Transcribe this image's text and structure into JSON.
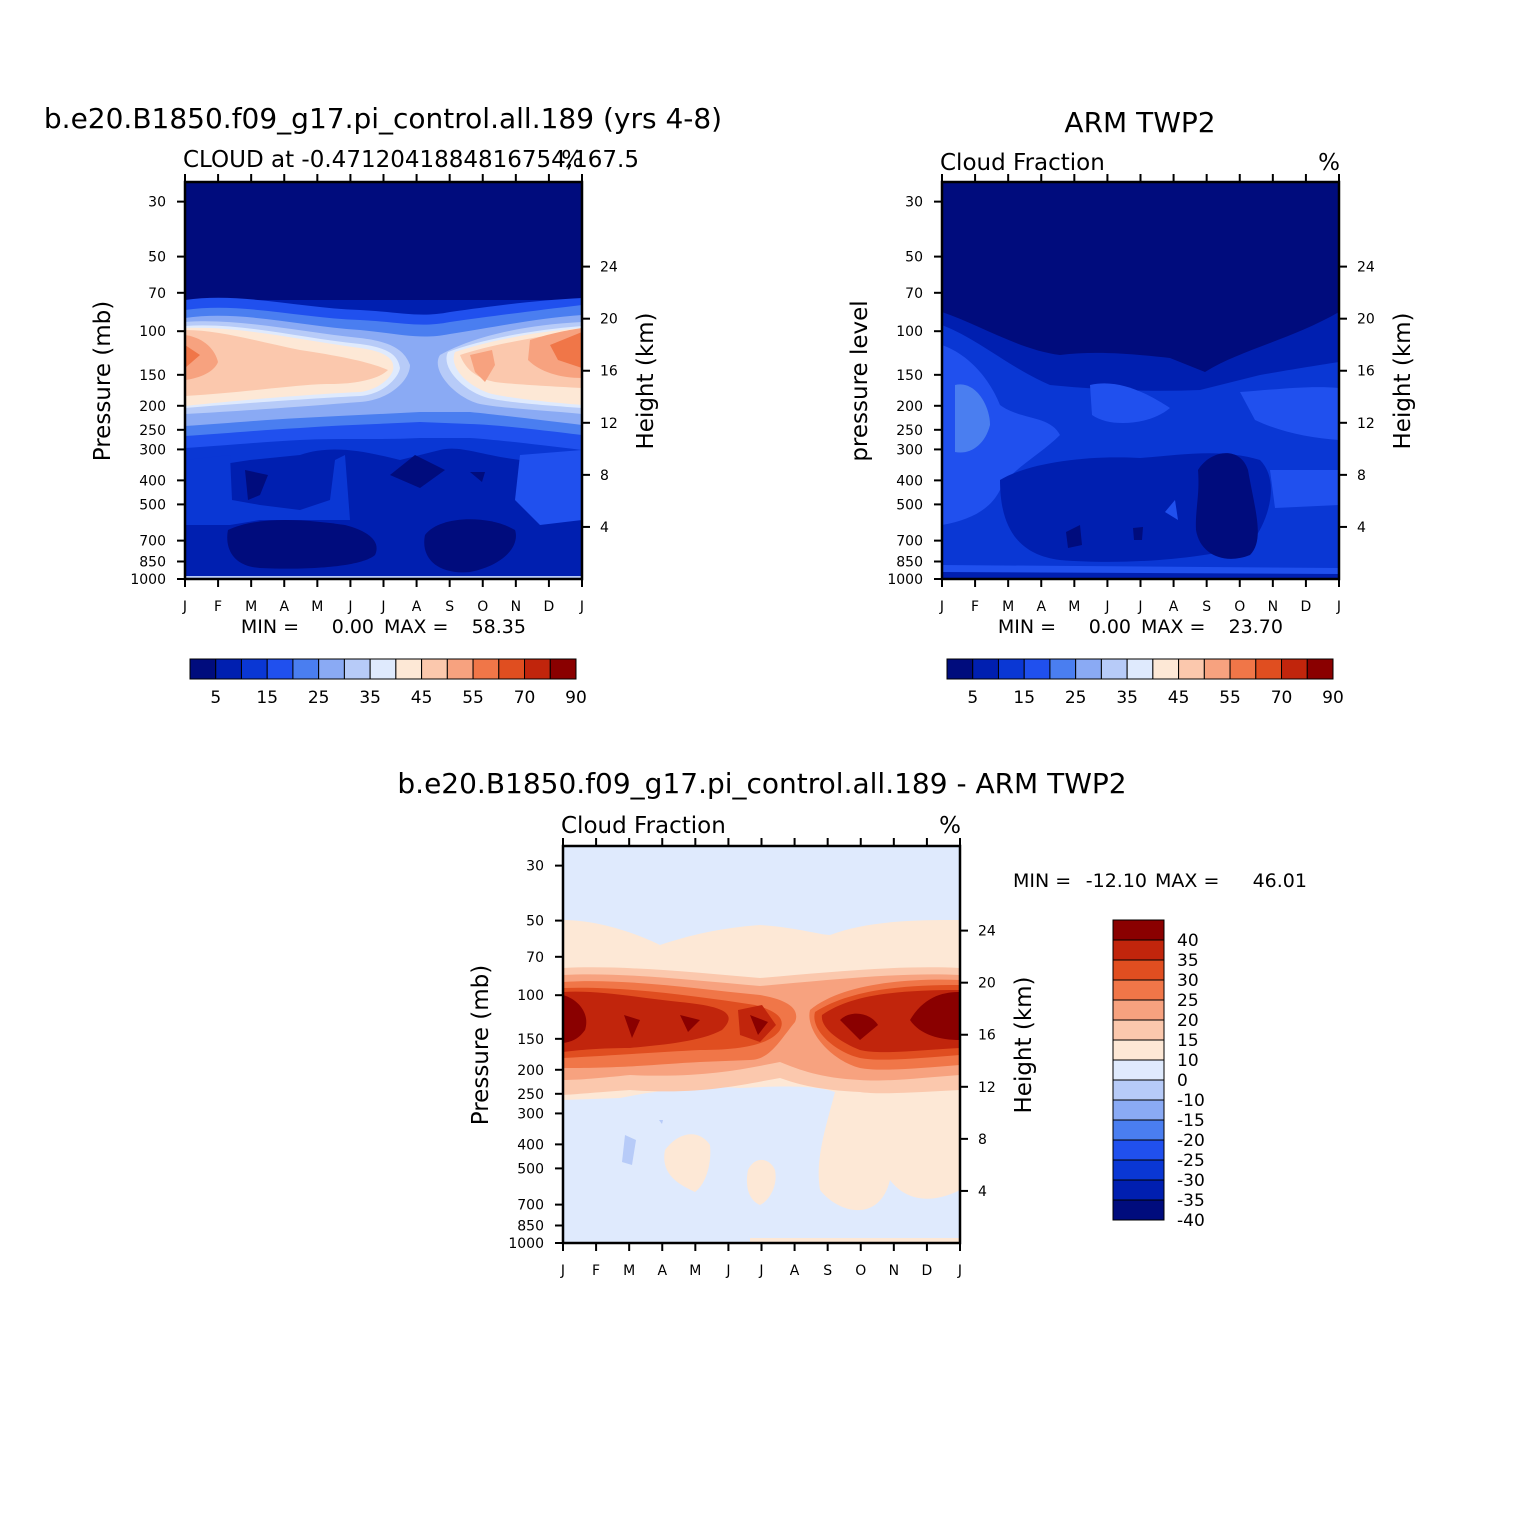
{
  "chart_data": [
    {
      "type": "heatmap",
      "id": "model",
      "title": "b.e20.B1850.f09_g17.pi_control.all.189 (yrs 4-8)",
      "left_string": "CLOUD at -0.4712041884816754,167.5",
      "right_string": "%",
      "ylabel": "Pressure (mb)",
      "ylabel_right": "Height (km)",
      "xlabel": "",
      "x_ticks": [
        "J",
        "F",
        "M",
        "A",
        "M",
        "J",
        "J",
        "A",
        "S",
        "O",
        "N",
        "D",
        "J"
      ],
      "y_ticks": [
        "30",
        "50",
        "70",
        "100",
        "150",
        "200",
        "250",
        "300",
        "400",
        "500",
        "700",
        "850",
        "1000"
      ],
      "y_ticks_right": [
        "24",
        "20",
        "16",
        "12",
        "8",
        "4"
      ],
      "ylim": [
        1000,
        25
      ],
      "stats": {
        "min_label": "MIN =",
        "min_value": "0.00",
        "max_label": "MAX =",
        "max_value": "58.35"
      },
      "colorbar": {
        "orientation": "horizontal",
        "labels": [
          "5",
          "15",
          "25",
          "35",
          "45",
          "55",
          "70",
          "90"
        ]
      },
      "profile_description": "cloud fraction (%) vs month; high cloud maximum near 100-150 mb peaking ~58 in Dec-Jan"
    },
    {
      "type": "heatmap",
      "id": "obs",
      "title": "ARM TWP2",
      "left_string": "Cloud Fraction",
      "right_string": "%",
      "ylabel": "pressure level",
      "ylabel_right": "Height (km)",
      "xlabel": "",
      "x_ticks": [
        "J",
        "F",
        "M",
        "A",
        "M",
        "J",
        "J",
        "A",
        "S",
        "O",
        "N",
        "D",
        "J"
      ],
      "y_ticks": [
        "30",
        "50",
        "70",
        "100",
        "150",
        "200",
        "250",
        "300",
        "400",
        "500",
        "700",
        "850",
        "1000"
      ],
      "y_ticks_right": [
        "24",
        "20",
        "16",
        "12",
        "8",
        "4"
      ],
      "ylim": [
        1000,
        25
      ],
      "stats": {
        "min_label": "MIN =",
        "min_value": "0.00",
        "max_label": "MAX =",
        "max_value": "23.70"
      },
      "colorbar": {
        "orientation": "horizontal",
        "labels": [
          "5",
          "15",
          "25",
          "35",
          "45",
          "55",
          "70",
          "90"
        ]
      }
    },
    {
      "type": "heatmap",
      "id": "diff",
      "title": "b.e20.B1850.f09_g17.pi_control.all.189 - ARM TWP2",
      "left_string": "Cloud Fraction",
      "right_string": "%",
      "ylabel": "Pressure (mb)",
      "ylabel_right": "Height (km)",
      "xlabel": "",
      "x_ticks": [
        "J",
        "F",
        "M",
        "A",
        "M",
        "J",
        "J",
        "A",
        "S",
        "O",
        "N",
        "D",
        "J"
      ],
      "y_ticks": [
        "30",
        "50",
        "70",
        "100",
        "150",
        "200",
        "250",
        "300",
        "400",
        "500",
        "700",
        "850",
        "1000"
      ],
      "y_ticks_right": [
        "24",
        "20",
        "16",
        "12",
        "8",
        "4"
      ],
      "ylim": [
        1000,
        25
      ],
      "stats": {
        "min_label": "MIN =",
        "min_value": "-12.10",
        "max_label": "MAX =",
        "max_value": "46.01"
      },
      "colorbar": {
        "orientation": "vertical",
        "labels": [
          "40",
          "35",
          "30",
          "25",
          "20",
          "15",
          "10",
          "0",
          "-10",
          "-15",
          "-20",
          "-25",
          "-30",
          "-35",
          "-40"
        ]
      }
    }
  ],
  "colors": {
    "seq": [
      "#000c7d",
      "#001fb0",
      "#0a37d4",
      "#2050ee",
      "#4a7ef0",
      "#8aaaf4",
      "#b7cbf8",
      "#dfeafd",
      "#fde8d6",
      "#fbc8ad",
      "#f7a27f",
      "#f07648",
      "#e04e20",
      "#c1250c",
      "#8a0000"
    ],
    "diff": [
      "#8a0000",
      "#c1250c",
      "#e04e20",
      "#f07648",
      "#f7a27f",
      "#fbc8ad",
      "#fde8d6",
      "#dfeafd",
      "#b7cbf8",
      "#8aaaf4",
      "#4a7ef0",
      "#2050ee",
      "#0a37d4",
      "#001fb0",
      "#000c7d"
    ]
  }
}
